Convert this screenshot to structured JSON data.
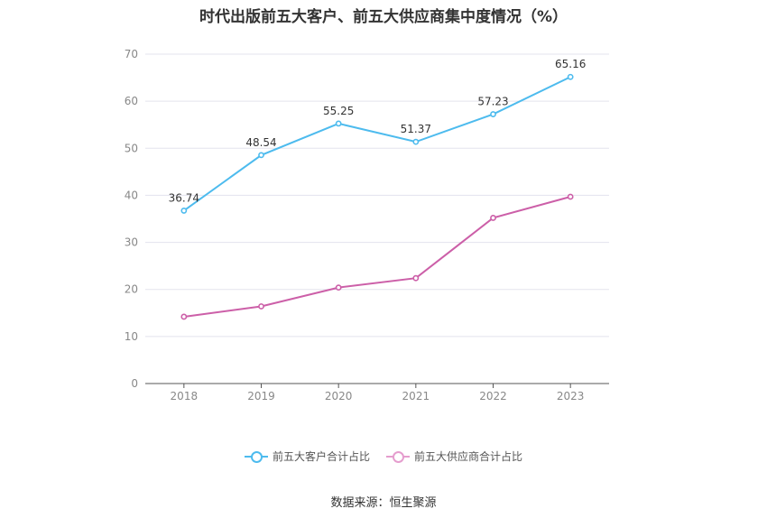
{
  "title": "时代出版前五大客户、前五大供应商集中度情况（%）",
  "source": "数据来源：恒生聚源",
  "colors": {
    "customers": "#4dbbee",
    "suppliers": "#cc5fa8",
    "grid": "#e3e3ee",
    "axis": "#555555"
  },
  "chart_data": {
    "type": "line",
    "title": "时代出版前五大客户、前五大供应商集中度情况（%）",
    "x": [
      "2018",
      "2019",
      "2020",
      "2021",
      "2022",
      "2023"
    ],
    "y_ticks": [
      "0",
      "10",
      "20",
      "30",
      "40",
      "50",
      "60",
      "70"
    ],
    "ylim": [
      0,
      70
    ],
    "grid": true,
    "legend": "bottom-center",
    "series": [
      {
        "name": "前五大客户合计占比",
        "values": [
          36.74,
          48.54,
          55.25,
          51.37,
          57.23,
          65.16
        ],
        "labels": [
          "36.74",
          "48.54",
          "55.25",
          "51.37",
          "57.23",
          "65.16"
        ]
      },
      {
        "name": "前五大供应商合计占比",
        "values": [
          14.2,
          16.4,
          20.4,
          22.4,
          35.2,
          39.7
        ]
      }
    ]
  }
}
